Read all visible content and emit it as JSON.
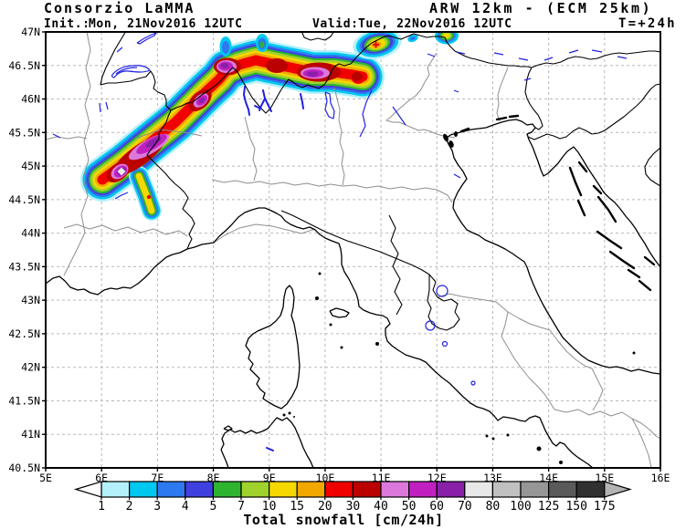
{
  "header": {
    "brand": "Consorzio LaMMA",
    "model": "ARW 12km - (ECM 25km)",
    "init_label": "Init.:",
    "init_value": "Mon, 21Nov2016 12UTC",
    "valid_label": "Valid:",
    "valid_value": "Tue, 22Nov2016 12UTC",
    "lead_time": "T=+24h",
    "accent": "#1a1ae6"
  },
  "axes": {
    "lat_ticks": [
      "47N",
      "46.5N",
      "46N",
      "45.5N",
      "45N",
      "44.5N",
      "44N",
      "43.5N",
      "43N",
      "42.5N",
      "42N",
      "41.5N",
      "41N",
      "40.5N"
    ],
    "lon_ticks": [
      "5E",
      "6E",
      "7E",
      "8E",
      "9E",
      "10E",
      "11E",
      "12E",
      "13E",
      "14E",
      "15E",
      "16E"
    ],
    "grid_color": "#b9b9b9"
  },
  "colorbar": {
    "title": "Total snowfall [cm/24h]",
    "levels": [
      1,
      2,
      3,
      4,
      5,
      7,
      10,
      15,
      20,
      30,
      40,
      50,
      60,
      70,
      80,
      100,
      125,
      150,
      175
    ],
    "colors": [
      "#b4f0fa",
      "#00c8f0",
      "#2e78f0",
      "#4040e0",
      "#2eb42e",
      "#a0d22d",
      "#f5d800",
      "#f0a800",
      "#f00000",
      "#bb0000",
      "#dc78dc",
      "#c020c0",
      "#8820a8",
      "#e8e8e8",
      "#c0c0c0",
      "#969696",
      "#5a5a5a",
      "#303030"
    ],
    "under_color": "#ffffff",
    "over_color": "#b4b4b4"
  },
  "chart_data": {
    "type": "heatmap",
    "title": "Total snowfall [cm/24h]",
    "variable": "total snowfall",
    "units": "cm/24h",
    "projection": "lat-lon",
    "lon_range": [
      5,
      16
    ],
    "lat_range": [
      40.5,
      47
    ],
    "x_ticks": [
      "5E",
      "6E",
      "7E",
      "8E",
      "9E",
      "10E",
      "11E",
      "12E",
      "13E",
      "14E",
      "15E",
      "16E"
    ],
    "y_ticks": [
      "47N",
      "46.5N",
      "46N",
      "45.5N",
      "45N",
      "44.5N",
      "44N",
      "43.5N",
      "43N",
      "42.5N",
      "42N",
      "41.5N",
      "41N",
      "40.5N"
    ],
    "grid": {
      "style": "dashed",
      "lon_step_deg": 1,
      "lat_step_deg": 0.5
    },
    "levels": [
      1,
      2,
      3,
      4,
      5,
      7,
      10,
      15,
      20,
      30,
      40,
      50,
      60,
      70,
      80,
      100,
      125,
      150,
      175
    ],
    "palette": [
      "#b4f0fa",
      "#00c8f0",
      "#2e78f0",
      "#4040e0",
      "#2eb42e",
      "#a0d22d",
      "#f5d800",
      "#f0a800",
      "#f00000",
      "#bb0000",
      "#dc78dc",
      "#c020c0",
      "#8820a8",
      "#e8e8e8",
      "#c0c0c0",
      "#969696",
      "#5a5a5a",
      "#303030"
    ],
    "under_color": "#ffffff",
    "over_color": "#b4b4b4",
    "features": [
      {
        "name": "french-alps-band",
        "approx_position": "6.3-7.8E 44.7-45.6N",
        "peak_cm": "70-80"
      },
      {
        "name": "southern-french-alps-core",
        "approx_position": "6.4E 44.9N",
        "peak_cm": "70-80"
      },
      {
        "name": "valle-daosta-core",
        "approx_position": "7.8E 46.0N",
        "peak_cm": "60-70"
      },
      {
        "name": "valais-core",
        "approx_position": "8.2E 46.5N",
        "peak_cm": "60-70"
      },
      {
        "name": "lepontine-core",
        "approx_position": "9.1E 46.5N",
        "peak_cm": "30-40"
      },
      {
        "name": "ortles-valtellina-core",
        "approx_position": "9.8E 46.4N",
        "peak_cm": "60-70"
      },
      {
        "name": "alto-adige-spot",
        "approx_position": "10.9E 46.8N",
        "peak_cm": "20-30"
      },
      {
        "name": "dolomites-spot",
        "approx_position": "12.2E 46.9N",
        "peak_cm": "10-15"
      },
      {
        "name": "southern-tail-maritime-alps",
        "approx_position": "6.9E 44.5N",
        "peak_cm": "20-30"
      }
    ]
  }
}
